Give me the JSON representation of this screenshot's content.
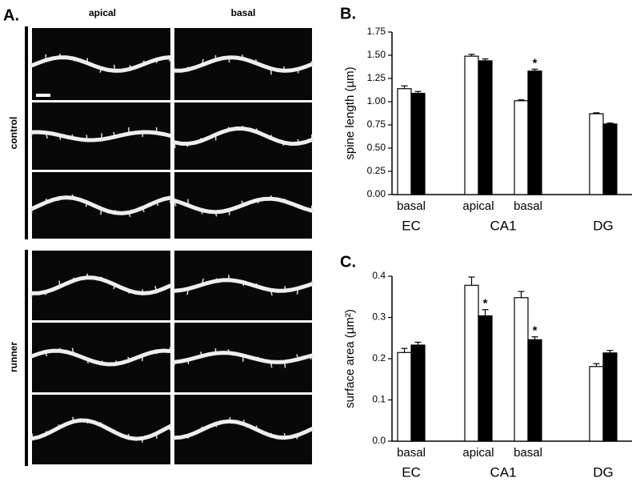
{
  "panel_a": {
    "label": "A.",
    "columns": [
      "apical",
      "basal"
    ],
    "rows": [
      "control",
      "runner"
    ]
  },
  "chart_data": [
    {
      "type": "bar",
      "panel_label": "B.",
      "y_label": "spine length (µm)",
      "categories": [
        "basal",
        "apical",
        "basal",
        null
      ],
      "groups": [
        "EC",
        "CA1",
        "DG"
      ],
      "ylim": [
        0,
        1.75
      ],
      "yticks": [
        {
          "value": 0,
          "label": "0.00"
        },
        {
          "value": 0.25,
          "label": "0.25"
        },
        {
          "value": 0.5,
          "label": "0.50"
        },
        {
          "value": 0.75,
          "label": "0.75"
        },
        {
          "value": 1,
          "label": "1.00"
        },
        {
          "value": 1.25,
          "label": "1.25"
        },
        {
          "value": 1.5,
          "label": "1.50"
        },
        {
          "value": 1.75,
          "label": "1.75"
        }
      ],
      "series": [
        {
          "color": "#ffffff",
          "values": [
            1.14,
            1.49,
            1.01,
            0.87
          ],
          "errors": [
            0.03,
            0.02,
            0.01,
            0.01
          ],
          "significance": [
            null,
            null,
            null,
            null
          ]
        },
        {
          "color": "#000000",
          "values": [
            1.09,
            1.44,
            1.33,
            0.76
          ],
          "errors": [
            0.02,
            0.02,
            0.02,
            0.01
          ],
          "significance": [
            null,
            null,
            "*",
            null
          ]
        }
      ]
    },
    {
      "type": "bar",
      "panel_label": "C.",
      "y_label": "surface area (µm²)",
      "categories": [
        "basal",
        "apical",
        "basal",
        null
      ],
      "groups": [
        "EC",
        "CA1",
        "DG"
      ],
      "ylim": [
        0,
        0.4
      ],
      "yticks": [
        {
          "value": 0,
          "label": "0.0"
        },
        0.1,
        0.2,
        0.3,
        0.4
      ],
      "series": [
        {
          "color": "#ffffff",
          "values": [
            0.215,
            0.378,
            0.348,
            0.181
          ],
          "errors": [
            0.01,
            0.02,
            0.015,
            0.007
          ],
          "significance": [
            null,
            null,
            null,
            null
          ]
        },
        {
          "color": "#000000",
          "values": [
            0.233,
            0.304,
            0.246,
            0.214
          ],
          "errors": [
            0.007,
            0.015,
            0.007,
            0.006
          ],
          "significance": [
            null,
            "*",
            "*",
            null
          ]
        }
      ]
    }
  ]
}
